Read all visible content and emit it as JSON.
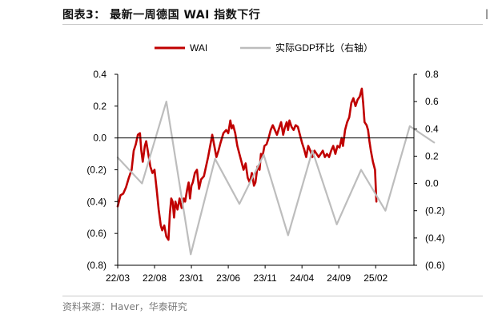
{
  "header": {
    "title": "图表3：  最新一周德国 WAI 指数下行"
  },
  "footer": {
    "source": "资料来源：Haver，华泰研究"
  },
  "chart_data": {
    "type": "line",
    "title": "",
    "x_ticks": [
      "22/03",
      "22/08",
      "23/01",
      "23/06",
      "23/11",
      "24/04",
      "24/09",
      "25/02"
    ],
    "y_left": {
      "ticks": [
        "0.4",
        "0.2",
        "0.0",
        "(0.2)",
        "(0.4)",
        "(0.6)",
        "(0.8)"
      ],
      "range": [
        -0.8,
        0.4
      ]
    },
    "y_right": {
      "ticks": [
        "0.8",
        "0.6",
        "0.4",
        "0.2",
        "0.0",
        "(0.2)",
        "(0.4)",
        "(0.6)"
      ],
      "range": [
        -0.6,
        0.8
      ]
    },
    "legend": {
      "position": "top",
      "items": [
        "WAI",
        "实际GDP环比（右轴）"
      ]
    },
    "series": [
      {
        "name": "WAI",
        "axis": "left",
        "color": "#c00000",
        "points": [
          [
            0.0,
            -0.43
          ],
          [
            0.2,
            -0.36
          ],
          [
            0.4,
            -0.35
          ],
          [
            0.6,
            -0.31
          ],
          [
            0.8,
            -0.25
          ],
          [
            1.0,
            -0.2
          ],
          [
            1.15,
            -0.08
          ],
          [
            1.3,
            -0.04
          ],
          [
            1.45,
            0.02
          ],
          [
            1.6,
            0.03
          ],
          [
            1.7,
            -0.08
          ],
          [
            1.8,
            -0.15
          ],
          [
            1.95,
            -0.05
          ],
          [
            2.05,
            -0.02
          ],
          [
            2.2,
            -0.1
          ],
          [
            2.35,
            -0.18
          ],
          [
            2.5,
            -0.22
          ],
          [
            2.65,
            -0.2
          ],
          [
            2.8,
            -0.32
          ],
          [
            2.95,
            -0.45
          ],
          [
            3.1,
            -0.55
          ],
          [
            3.2,
            -0.58
          ],
          [
            3.35,
            -0.55
          ],
          [
            3.5,
            -0.62
          ],
          [
            3.65,
            -0.64
          ],
          [
            3.75,
            -0.48
          ],
          [
            3.85,
            -0.38
          ],
          [
            3.95,
            -0.4
          ],
          [
            4.05,
            -0.5
          ],
          [
            4.15,
            -0.4
          ],
          [
            4.3,
            -0.45
          ],
          [
            4.45,
            -0.38
          ],
          [
            4.6,
            -0.44
          ],
          [
            4.75,
            -0.38
          ],
          [
            4.85,
            -0.4
          ],
          [
            5.0,
            -0.32
          ],
          [
            5.1,
            -0.28
          ],
          [
            5.2,
            -0.38
          ],
          [
            5.3,
            -0.3
          ],
          [
            5.4,
            -0.28
          ],
          [
            5.55,
            -0.22
          ],
          [
            5.7,
            -0.2
          ],
          [
            5.85,
            -0.32
          ],
          [
            6.0,
            -0.26
          ],
          [
            6.2,
            -0.24
          ],
          [
            6.35,
            -0.18
          ],
          [
            6.5,
            -0.12
          ],
          [
            6.65,
            -0.05
          ],
          [
            6.8,
            0.02
          ],
          [
            6.95,
            -0.05
          ],
          [
            7.1,
            -0.12
          ],
          [
            7.25,
            -0.08
          ],
          [
            7.4,
            -0.03
          ],
          [
            7.6,
            0.03
          ],
          [
            7.8,
            0.05
          ],
          [
            7.95,
            0.03
          ],
          [
            8.1,
            0.11
          ],
          [
            8.2,
            0.06
          ],
          [
            8.3,
            0.08
          ],
          [
            8.45,
            0.03
          ],
          [
            8.6,
            -0.05
          ],
          [
            8.75,
            -0.1
          ],
          [
            8.9,
            -0.15
          ],
          [
            9.05,
            -0.2
          ],
          [
            9.2,
            -0.16
          ],
          [
            9.35,
            -0.25
          ],
          [
            9.5,
            -0.28
          ],
          [
            9.65,
            -0.22
          ],
          [
            9.8,
            -0.3
          ],
          [
            9.9,
            -0.28
          ],
          [
            10.05,
            -0.18
          ],
          [
            10.2,
            -0.2
          ],
          [
            10.3,
            -0.1
          ],
          [
            10.4,
            -0.12
          ],
          [
            10.55,
            -0.05
          ],
          [
            10.7,
            -0.04
          ],
          [
            10.85,
            0.0
          ],
          [
            11.0,
            0.05
          ],
          [
            11.15,
            0.08
          ],
          [
            11.3,
            0.05
          ],
          [
            11.45,
            0.02
          ],
          [
            11.6,
            0.06
          ],
          [
            11.75,
            0.1
          ],
          [
            11.9,
            0.02
          ],
          [
            12.0,
            0.06
          ],
          [
            12.15,
            0.1
          ],
          [
            12.25,
            0.05
          ],
          [
            12.35,
            0.11
          ],
          [
            12.5,
            0.07
          ],
          [
            12.65,
            0.05
          ],
          [
            12.8,
            0.08
          ],
          [
            12.95,
            0.07
          ],
          [
            13.1,
            0.02
          ],
          [
            13.25,
            -0.03
          ],
          [
            13.4,
            -0.07
          ],
          [
            13.55,
            -0.12
          ],
          [
            13.7,
            -0.05
          ],
          [
            13.85,
            -0.08
          ],
          [
            14.0,
            -0.12
          ],
          [
            14.15,
            -0.08
          ],
          [
            14.3,
            -0.1
          ],
          [
            14.45,
            -0.12
          ],
          [
            14.6,
            -0.1
          ],
          [
            14.75,
            -0.08
          ],
          [
            14.9,
            -0.12
          ],
          [
            15.05,
            -0.1
          ],
          [
            15.2,
            -0.12
          ],
          [
            15.35,
            -0.08
          ],
          [
            15.5,
            -0.05
          ],
          [
            15.65,
            -0.1
          ],
          [
            15.8,
            -0.05
          ],
          [
            15.95,
            -0.06
          ],
          [
            16.1,
            0.0
          ],
          [
            16.2,
            -0.05
          ],
          [
            16.35,
            0.05
          ],
          [
            16.5,
            0.1
          ],
          [
            16.65,
            0.13
          ],
          [
            16.8,
            0.22
          ],
          [
            16.95,
            0.25
          ],
          [
            17.1,
            0.2
          ],
          [
            17.25,
            0.24
          ],
          [
            17.4,
            0.26
          ],
          [
            17.55,
            0.31
          ],
          [
            17.65,
            0.22
          ],
          [
            17.75,
            0.1
          ],
          [
            17.9,
            0.08
          ],
          [
            18.0,
            0.05
          ],
          [
            18.1,
            -0.02
          ],
          [
            18.2,
            -0.08
          ],
          [
            18.35,
            -0.15
          ],
          [
            18.5,
            -0.2
          ],
          [
            18.6,
            -0.4
          ]
        ]
      },
      {
        "name": "实际GDP环比（右轴）",
        "axis": "right",
        "color": "#bdbdbd",
        "points": [
          [
            0.0,
            0.19
          ],
          [
            1.75,
            0.0
          ],
          [
            3.5,
            0.6
          ],
          [
            5.25,
            -0.52
          ],
          [
            7.0,
            0.18
          ],
          [
            8.75,
            -0.15
          ],
          [
            10.5,
            0.21
          ],
          [
            12.25,
            -0.38
          ],
          [
            14.0,
            0.24
          ],
          [
            15.75,
            -0.3
          ],
          [
            17.5,
            0.1
          ],
          [
            19.25,
            -0.2
          ],
          [
            21.0,
            0.42
          ],
          [
            22.75,
            0.3
          ]
        ]
      }
    ]
  }
}
